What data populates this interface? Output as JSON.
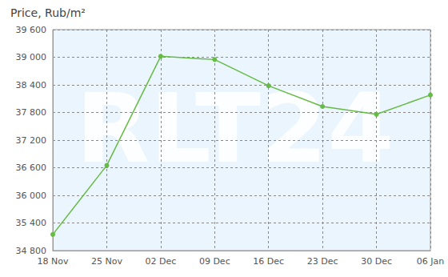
{
  "chart_data": {
    "type": "line",
    "title": "Price, Rub/m²",
    "watermark": "RLT24",
    "categories": [
      "18 Nov",
      "25 Nov",
      "02 Dec",
      "09 Dec",
      "16 Dec",
      "23 Dec",
      "30 Dec",
      "06 Jan"
    ],
    "values": [
      35150,
      36650,
      39020,
      38950,
      38380,
      37930,
      37760,
      38180
    ],
    "color": "#66bb44",
    "marker": "circle",
    "ylim": [
      34800,
      39600
    ],
    "yticks": [
      {
        "value": 34800,
        "label": "34 800"
      },
      {
        "value": 35400,
        "label": "35 400"
      },
      {
        "value": 36000,
        "label": "36 000"
      },
      {
        "value": 36600,
        "label": "36 600"
      },
      {
        "value": 37200,
        "label": "37 200"
      },
      {
        "value": 37800,
        "label": "37 800"
      },
      {
        "value": 38400,
        "label": "38 400"
      },
      {
        "value": 39000,
        "label": "39 000"
      },
      {
        "value": 39600,
        "label": "39 600"
      }
    ],
    "grid": true
  }
}
